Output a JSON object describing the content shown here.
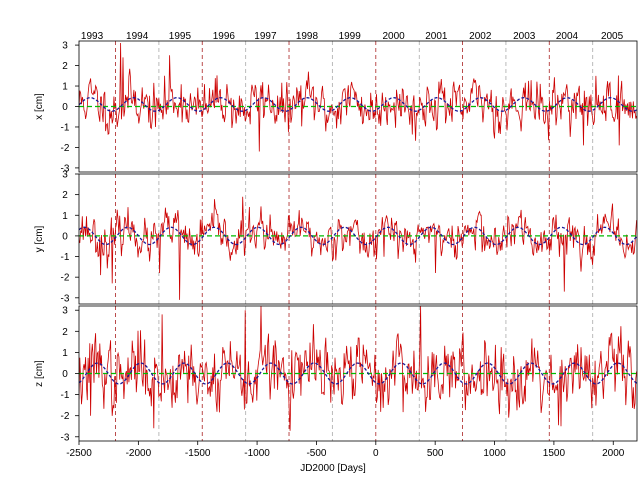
{
  "chart_data": {
    "type": "line",
    "xlabel": "JD2000 [Days]",
    "xlim": [
      -2500,
      2200
    ],
    "x_ticks": [
      -2500,
      -2000,
      -1500,
      -1000,
      -500,
      0,
      500,
      1000,
      1500,
      2000
    ],
    "year_labels": [
      {
        "label": "1993",
        "center": -2390
      },
      {
        "label": "1994",
        "center": -2010
      },
      {
        "label": "1995",
        "center": -1650
      },
      {
        "label": "1996",
        "center": -1280
      },
      {
        "label": "1997",
        "center": -930
      },
      {
        "label": "1998",
        "center": -580
      },
      {
        "label": "1999",
        "center": -220
      },
      {
        "label": "2000",
        "center": 150
      },
      {
        "label": "2001",
        "center": 510
      },
      {
        "label": "2002",
        "center": 880
      },
      {
        "label": "2003",
        "center": 1250
      },
      {
        "label": "2004",
        "center": 1610
      },
      {
        "label": "2005",
        "center": 1990
      }
    ],
    "year_boundaries": [
      -2192,
      -1827,
      -1462,
      -1096,
      -731,
      -366,
      0,
      366,
      731,
      1096,
      1461,
      1827
    ],
    "colors": {
      "series": "#cc0000",
      "zero_line": "#00bb00",
      "seasonal_fit": "#1a1a99",
      "year_line_odd": "#aa2222",
      "year_line_even": "#aaaaaa"
    },
    "panels": [
      {
        "name": "x",
        "ylabel": "x [cm]",
        "ylim": [
          -3.2,
          3.2
        ],
        "y_ticks": [
          -3,
          -2,
          -1,
          0,
          1,
          2,
          3
        ],
        "seasonal": {
          "amplitude": 0.3,
          "phase_day": 60,
          "offset": 0.1
        },
        "noise": {
          "sd": 0.55,
          "seed": 11
        },
        "spikes": [
          [
            -2150,
            3.1
          ],
          [
            -2130,
            2.4
          ],
          [
            -1740,
            2.5
          ],
          [
            -980,
            -2.2
          ],
          [
            1750,
            -1.9
          ],
          [
            2050,
            -1.9
          ]
        ]
      },
      {
        "name": "y",
        "ylabel": "y [cm]",
        "ylim": [
          -3.3,
          3.0
        ],
        "y_ticks": [
          -3,
          -2,
          -1,
          0,
          1,
          2,
          3
        ],
        "seasonal": {
          "amplitude": 0.38,
          "phase_day": 10,
          "offset": 0.0
        },
        "noise": {
          "sd": 0.45,
          "seed": 23
        },
        "spikes": [
          [
            -2320,
            -1.9
          ],
          [
            -2220,
            -2.3
          ],
          [
            -1820,
            -1.8
          ],
          [
            -1650,
            -3.1
          ],
          [
            -1120,
            1.9
          ],
          [
            1590,
            -2.7
          ],
          [
            500,
            -1.8
          ]
        ]
      },
      {
        "name": "z",
        "ylabel": "z [cm]",
        "ylim": [
          -3.2,
          3.2
        ],
        "y_ticks": [
          -3,
          -2,
          -1,
          0,
          1,
          2,
          3
        ],
        "seasonal": {
          "amplitude": 0.45,
          "phase_day": 120,
          "offset": 0.0
        },
        "noise": {
          "sd": 0.75,
          "seed": 37
        },
        "spikes": [
          [
            -1800,
            2.8
          ],
          [
            -1100,
            3.0
          ],
          [
            -970,
            3.2
          ],
          [
            380,
            3.2
          ],
          [
            -1870,
            -2.6
          ],
          [
            1560,
            -2.5
          ],
          [
            -2400,
            -2.0
          ]
        ]
      }
    ]
  }
}
